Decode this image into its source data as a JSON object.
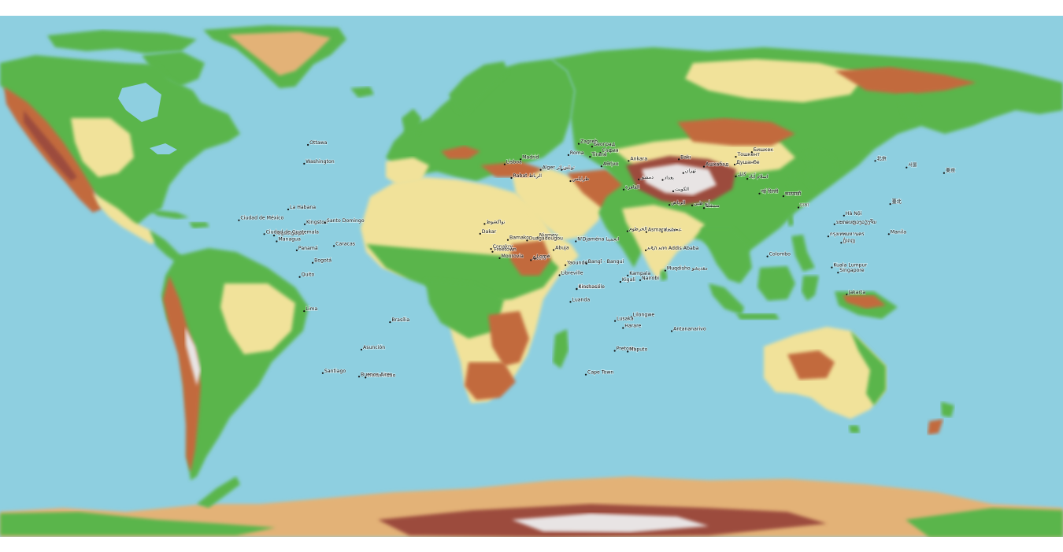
{
  "map": {
    "ocean_color": "#8ecfe0",
    "elevation_palette": {
      "lowland": "#5ab54c",
      "low_plain": "#9fd36b",
      "plateau": "#f1e29a",
      "hills": "#e3b277",
      "mountains": "#c26a3e",
      "high_mountains": "#9c4c3e",
      "ice_peaks": "#e8e4e4"
    },
    "cities": [
      {
        "name": "Ottawa",
        "lon": -75.7,
        "lat": 45.4
      },
      {
        "name": "Washington",
        "lon": -77.0,
        "lat": 38.9
      },
      {
        "name": "La Habana",
        "lon": -82.4,
        "lat": 23.1
      },
      {
        "name": "Kingston",
        "lon": -76.8,
        "lat": 18.0
      },
      {
        "name": "Santo Domingo",
        "lon": -69.9,
        "lat": 18.5
      },
      {
        "name": "Ciudad de México",
        "lon": -99.1,
        "lat": 19.4
      },
      {
        "name": "Tegucigalpa",
        "lon": -87.2,
        "lat": 14.1
      },
      {
        "name": "Ciudad de Guatemala",
        "lon": -90.5,
        "lat": 14.6
      },
      {
        "name": "Managua",
        "lon": -86.3,
        "lat": 12.1
      },
      {
        "name": "Panamá",
        "lon": -79.5,
        "lat": 9.0
      },
      {
        "name": "Caracas",
        "lon": -66.9,
        "lat": 10.5
      },
      {
        "name": "Bogotá",
        "lon": -74.1,
        "lat": 4.7
      },
      {
        "name": "Quito",
        "lon": -78.5,
        "lat": -0.2
      },
      {
        "name": "Lima",
        "lon": -77.0,
        "lat": -12.0
      },
      {
        "name": "Brasília",
        "lon": -47.9,
        "lat": -15.8
      },
      {
        "name": "Asunción",
        "lon": -57.6,
        "lat": -25.3
      },
      {
        "name": "Santiago",
        "lon": -70.7,
        "lat": -33.4
      },
      {
        "name": "Montevideo",
        "lon": -56.2,
        "lat": -34.9
      },
      {
        "name": "Buenos Aires",
        "lon": -58.4,
        "lat": -34.6
      },
      {
        "name": "Lisboa",
        "lon": -9.1,
        "lat": 38.7
      },
      {
        "name": "Madrid",
        "lon": -3.7,
        "lat": 40.4
      },
      {
        "name": "Roma",
        "lon": 12.5,
        "lat": 41.9
      },
      {
        "name": "Zagreb",
        "lon": 16.0,
        "lat": 45.8
      },
      {
        "name": "Београд",
        "lon": 20.5,
        "lat": 44.8
      },
      {
        "name": "София",
        "lon": 23.3,
        "lat": 42.7
      },
      {
        "name": "Tiranë",
        "lon": 19.8,
        "lat": 41.3
      },
      {
        "name": "Ankara",
        "lon": 32.9,
        "lat": 39.9
      },
      {
        "name": "Αθήνα",
        "lon": 23.7,
        "lat": 38.0
      },
      {
        "name": "Alger الجزائر",
        "lon": 3.1,
        "lat": 36.8
      },
      {
        "name": "تونس",
        "lon": 10.2,
        "lat": 36.8
      },
      {
        "name": "Rabat الرباط",
        "lon": -6.8,
        "lat": 34.0
      },
      {
        "name": "طرابلس",
        "lon": 13.2,
        "lat": 32.9
      },
      {
        "name": "القاهرة",
        "lon": 31.2,
        "lat": 30.0
      },
      {
        "name": "دمشق",
        "lon": 36.3,
        "lat": 33.5
      },
      {
        "name": "بغداد",
        "lon": 44.4,
        "lat": 33.3
      },
      {
        "name": "تهران",
        "lon": 51.4,
        "lat": 35.7
      },
      {
        "name": "Bakı",
        "lon": 49.9,
        "lat": 40.4
      },
      {
        "name": "Ашхабад",
        "lon": 58.4,
        "lat": 37.9
      },
      {
        "name": "Тошкент",
        "lon": 69.2,
        "lat": 41.3
      },
      {
        "name": "Бишкек",
        "lon": 74.6,
        "lat": 42.9
      },
      {
        "name": "Душанбе",
        "lon": 68.8,
        "lat": 38.6
      },
      {
        "name": "کابل",
        "lon": 69.2,
        "lat": 34.5
      },
      {
        "name": "اسلام آباد",
        "lon": 73.1,
        "lat": 33.7
      },
      {
        "name": "الكويت",
        "lon": 48.0,
        "lat": 29.4
      },
      {
        "name": "الرياض",
        "lon": 46.7,
        "lat": 24.7
      },
      {
        "name": "أبو ظبي",
        "lon": 54.4,
        "lat": 24.5
      },
      {
        "name": "مسقط",
        "lon": 58.4,
        "lat": 23.6
      },
      {
        "name": "صنعاء",
        "lon": 44.2,
        "lat": 15.4
      },
      {
        "name": "नई दिल्ली",
        "lon": 77.2,
        "lat": 28.6
      },
      {
        "name": "काठमाडौं",
        "lon": 85.3,
        "lat": 27.7
      },
      {
        "name": "ঢাকা",
        "lon": 90.4,
        "lat": 23.8
      },
      {
        "name": "Colombo",
        "lon": 79.9,
        "lat": 6.9
      },
      {
        "name": "北京",
        "lon": 116.4,
        "lat": 39.9
      },
      {
        "name": "서울",
        "lon": 127.0,
        "lat": 37.6
      },
      {
        "name": "東京",
        "lon": 139.7,
        "lat": 35.7
      },
      {
        "name": "臺北",
        "lon": 121.5,
        "lat": 25.0
      },
      {
        "name": "Manila",
        "lon": 121.0,
        "lat": 14.6
      },
      {
        "name": "Hà Nội",
        "lon": 105.8,
        "lat": 21.0
      },
      {
        "name": "ນະຄອນຫຼວງວຽງຈັນ",
        "lon": 102.6,
        "lat": 18.0
      },
      {
        "name": "กรุงเทพมหานคร",
        "lon": 100.5,
        "lat": 13.8
      },
      {
        "name": "ភ្នំពេញ",
        "lon": 104.9,
        "lat": 11.6
      },
      {
        "name": "Kuala Lumpur",
        "lon": 101.7,
        "lat": 3.1
      },
      {
        "name": "Singapore",
        "lon": 103.8,
        "lat": 1.3
      },
      {
        "name": "Jakarta",
        "lon": 106.8,
        "lat": -6.2
      },
      {
        "name": "نواكشوط",
        "lon": -15.9,
        "lat": 18.1
      },
      {
        "name": "Dakar",
        "lon": -17.4,
        "lat": 14.7
      },
      {
        "name": "Bamako",
        "lon": -8.0,
        "lat": 12.6
      },
      {
        "name": "Niamey",
        "lon": 2.1,
        "lat": 13.5
      },
      {
        "name": "Ouagadougou",
        "lon": -1.5,
        "lat": 12.4
      },
      {
        "name": "N'Djaména انجمينا",
        "lon": 15.0,
        "lat": 12.1
      },
      {
        "name": "الخرطوم",
        "lon": 32.5,
        "lat": 15.6
      },
      {
        "name": "Asmara አስመራ",
        "lon": 38.9,
        "lat": 15.3
      },
      {
        "name": "Conakry",
        "lon": -13.7,
        "lat": 9.5
      },
      {
        "name": "Freetown",
        "lon": -13.2,
        "lat": 8.5
      },
      {
        "name": "Monrovia",
        "lon": -10.8,
        "lat": 6.3
      },
      {
        "name": "Accra",
        "lon": -0.2,
        "lat": 5.6
      },
      {
        "name": "Lomé",
        "lon": 1.2,
        "lat": 6.1
      },
      {
        "name": "Abuja",
        "lon": 7.5,
        "lat": 9.1
      },
      {
        "name": "Yaoundé",
        "lon": 11.5,
        "lat": 3.9
      },
      {
        "name": "Bangî - Bangui",
        "lon": 18.6,
        "lat": 4.4
      },
      {
        "name": "አዲስ አበባ Addis Ababa",
        "lon": 38.7,
        "lat": 9.0
      },
      {
        "name": "Muqdisho مقديشو",
        "lon": 45.3,
        "lat": 2.0
      },
      {
        "name": "Libreville",
        "lon": 9.5,
        "lat": 0.4
      },
      {
        "name": "Kampala",
        "lon": 32.6,
        "lat": 0.3
      },
      {
        "name": "Nairobi",
        "lon": 36.8,
        "lat": -1.3
      },
      {
        "name": "Kigali",
        "lon": 30.1,
        "lat": -1.9
      },
      {
        "name": "Brazzaville",
        "lon": 15.3,
        "lat": -4.3
      },
      {
        "name": "Kinshasa",
        "lon": 15.3,
        "lat": -4.4
      },
      {
        "name": "Luanda",
        "lon": 13.2,
        "lat": -8.8
      },
      {
        "name": "Lilongwe",
        "lon": 33.8,
        "lat": -13.97
      },
      {
        "name": "Lusaka",
        "lon": 28.3,
        "lat": -15.4
      },
      {
        "name": "Harare",
        "lon": 31.0,
        "lat": -17.8
      },
      {
        "name": "Antananarivo",
        "lon": 47.5,
        "lat": -18.9
      },
      {
        "name": "Pretoria",
        "lon": 28.2,
        "lat": -25.7
      },
      {
        "name": "Maputo",
        "lon": 32.6,
        "lat": -25.97
      },
      {
        "name": "Cape Town",
        "lon": 18.4,
        "lat": -33.9
      }
    ]
  }
}
